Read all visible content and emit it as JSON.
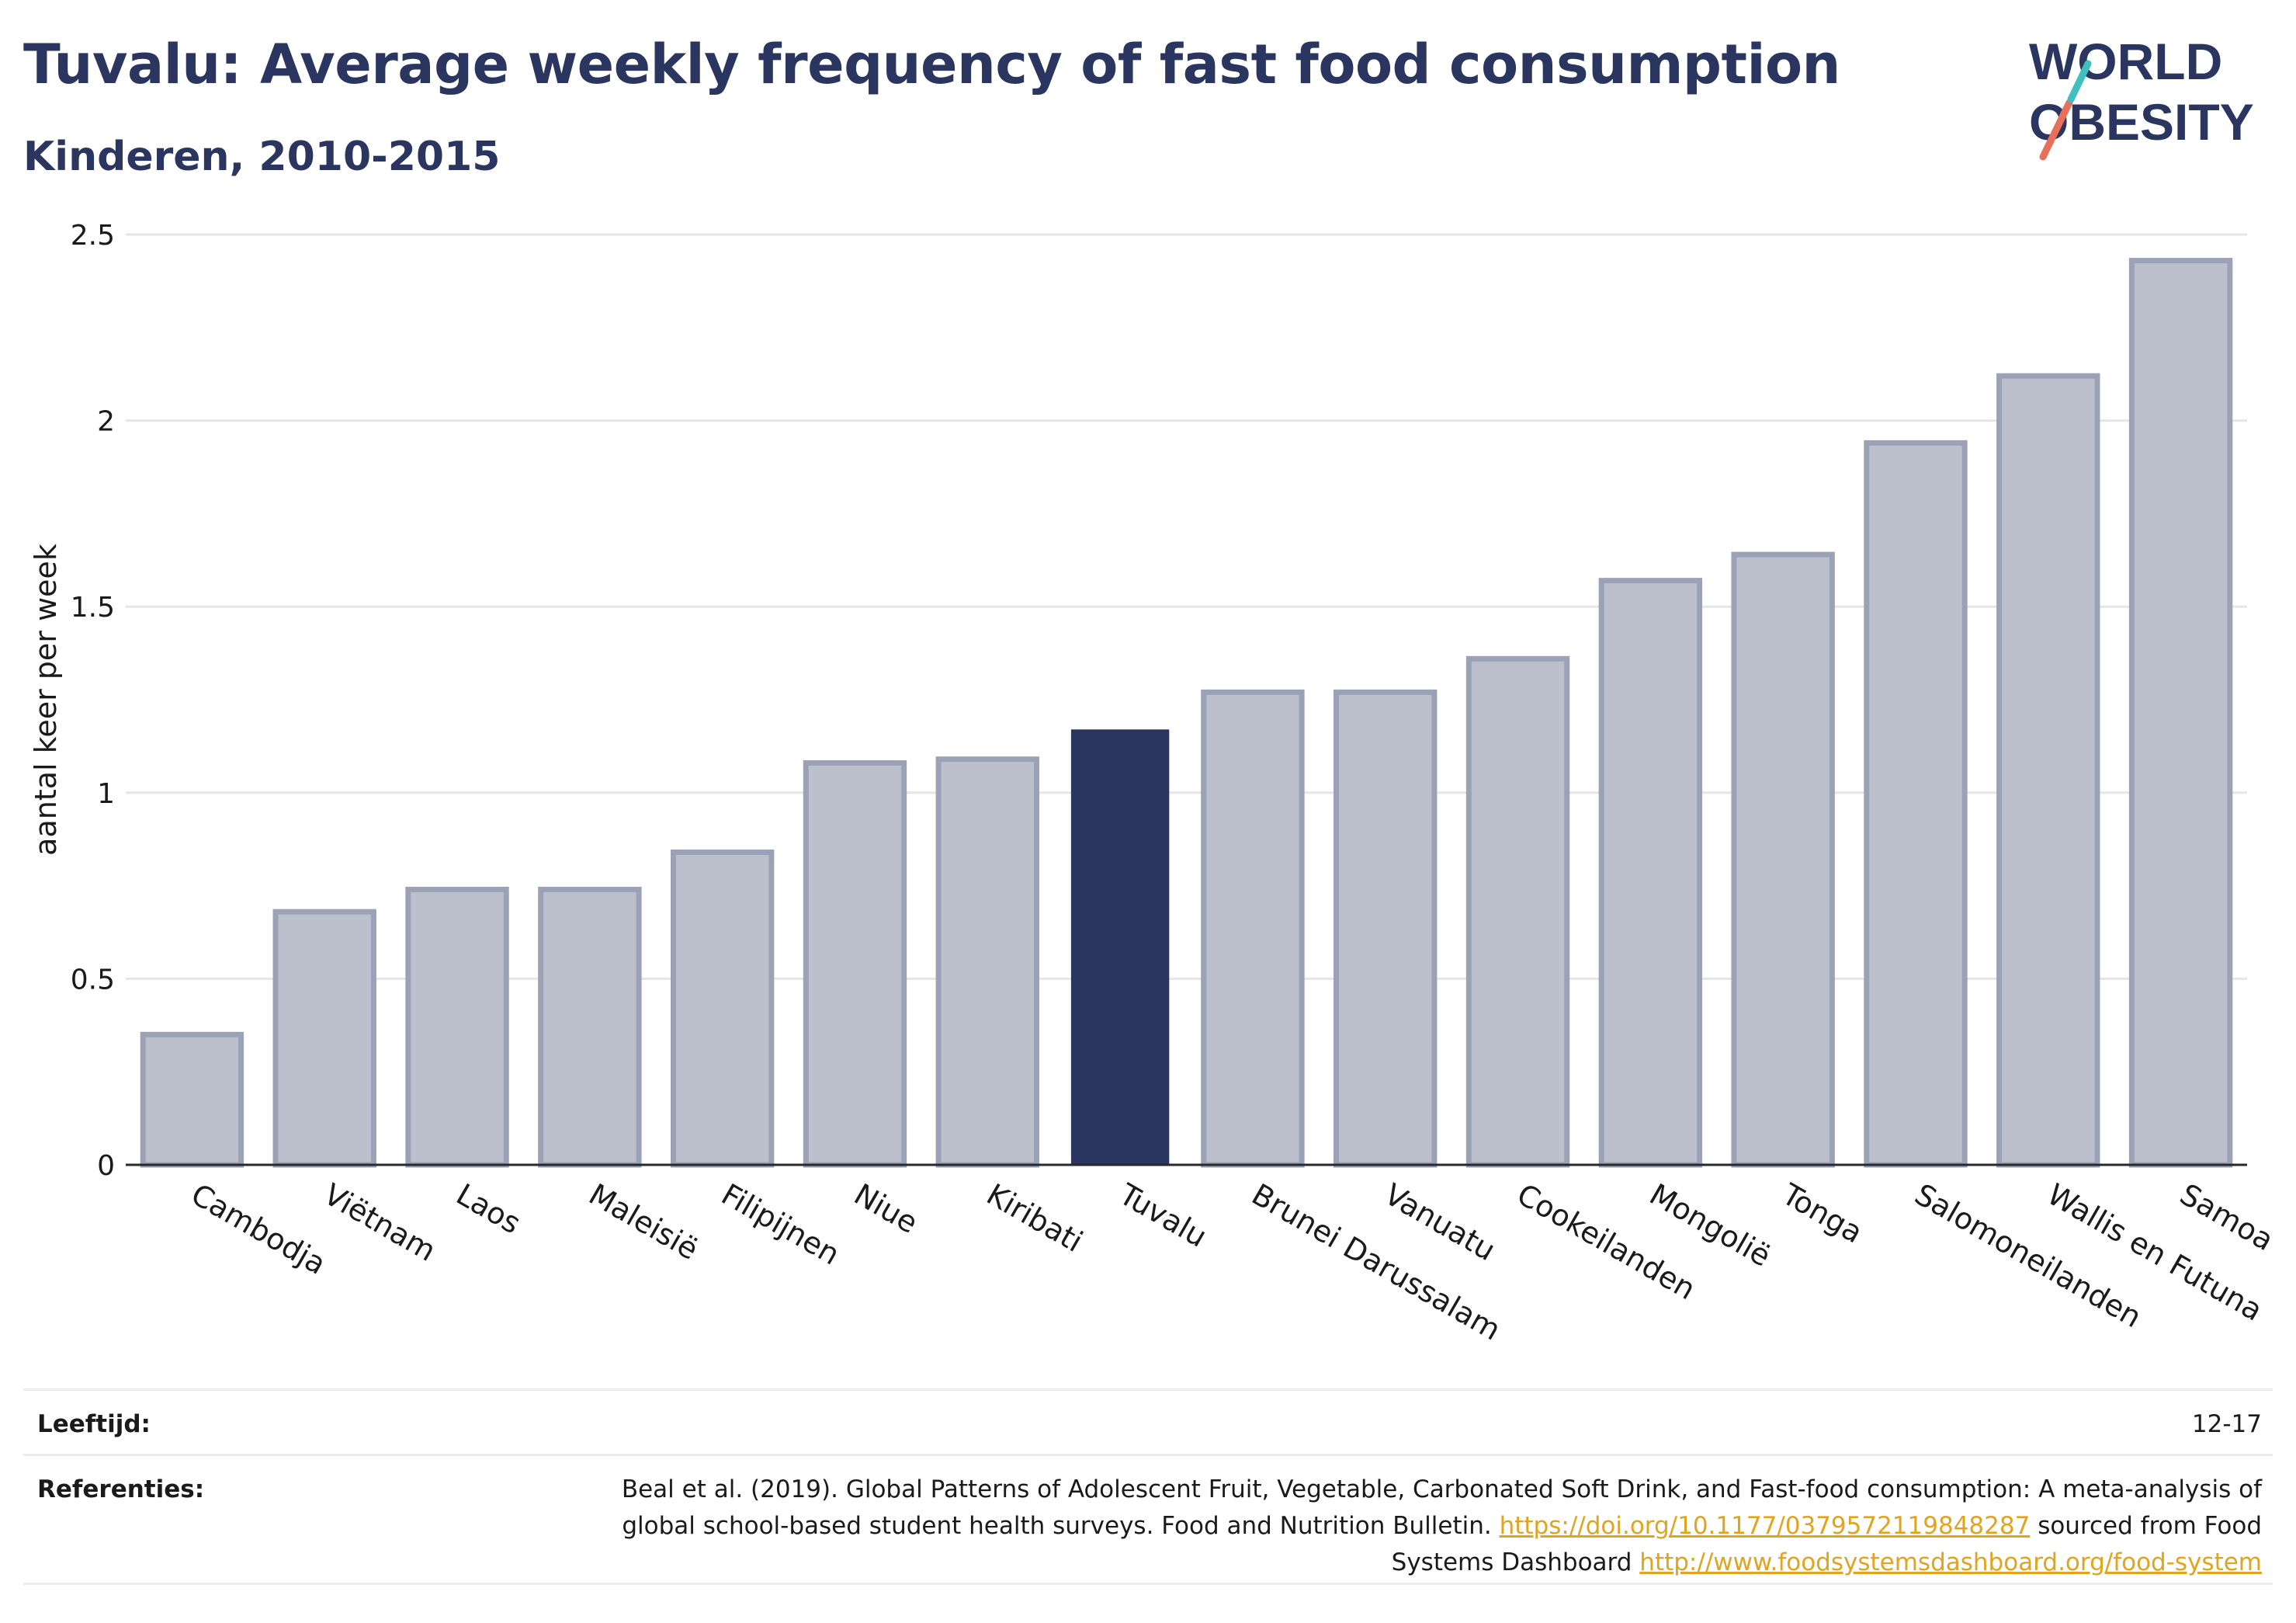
{
  "header": {
    "title": "Tuvalu: Average weekly frequency of fast food consumption",
    "subtitle": "Kinderen, 2010-2015"
  },
  "logo": {
    "line1": "WORLD",
    "line2": "OBESITY"
  },
  "colors": {
    "highlight": "#2a365f",
    "bar": "#bcc0cd",
    "bar_border": "#9ba2b6",
    "title": "#2a365f",
    "link": "#e0a420"
  },
  "chart_data": {
    "type": "bar",
    "title": "Tuvalu: Average weekly frequency of fast food consumption",
    "subtitle": "Kinderen, 2010-2015",
    "ylabel": "aantal keer per week",
    "xlabel": "",
    "ylim": [
      0,
      2.5
    ],
    "yticks": [
      0,
      0.5,
      1,
      1.5,
      2,
      2.5
    ],
    "ytick_labels": [
      "0",
      "0.5",
      "1",
      "1.5",
      "2",
      "2.5"
    ],
    "grid": true,
    "highlight": "Tuvalu",
    "categories": [
      "Cambodja",
      "Viëtnam",
      "Laos",
      "Maleisië",
      "Filipijnen",
      "Niue",
      "Kiribati",
      "Tuvalu",
      "Brunei Darussalam",
      "Vanuatu",
      "Cookeilanden",
      "Mongolië",
      "Tonga",
      "Salomoneilanden",
      "Wallis en Futuna",
      "Samoa"
    ],
    "values": [
      0.35,
      0.68,
      0.74,
      0.74,
      0.84,
      1.08,
      1.09,
      1.17,
      1.27,
      1.27,
      1.36,
      1.57,
      1.64,
      1.94,
      2.12,
      2.43
    ]
  },
  "footer": {
    "age_label": "Leeftijd:",
    "age_value": "12-17",
    "ref_label": "Referenties:",
    "ref_text_1": "Beal et al. (2019). Global Patterns of Adolescent Fruit, Vegetable, Carbonated Soft Drink, and Fast-food consumption: A meta-analysis of global school-based student health surveys. Food and Nutrition Bulletin.",
    "ref_link_1": "https://doi.org/10.1177/0379572119848287",
    "ref_text_2": "sourced from Food Systems Dashboard",
    "ref_link_2": "http://www.foodsystemsdashboard.org/food-system"
  }
}
